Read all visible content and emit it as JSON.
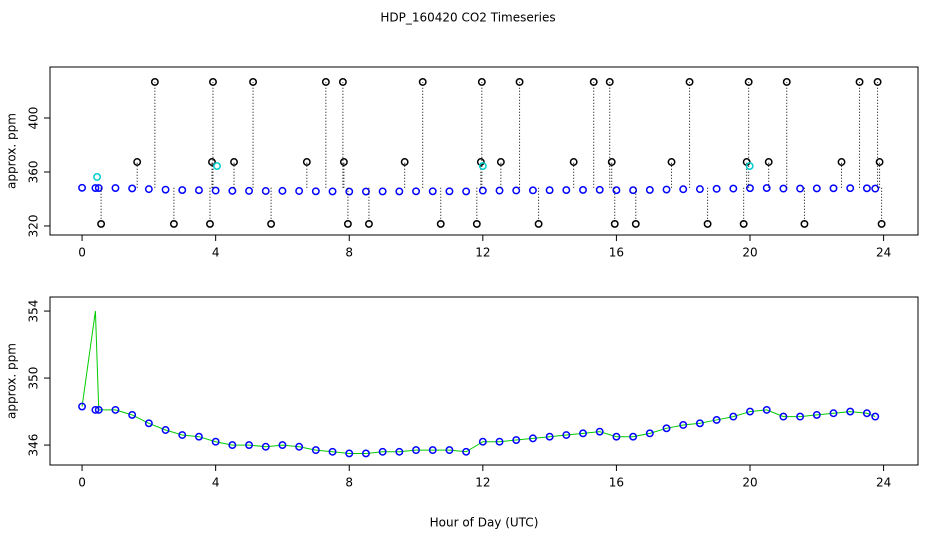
{
  "chart_data": [
    {
      "type": "scatter",
      "title": "HDP_160420  CO2 Timeseries",
      "ylabel": "approx. ppm",
      "xlim": [
        -0.96,
        25.03
      ],
      "xticks": [
        0,
        4,
        8,
        12,
        16,
        20,
        24
      ],
      "ylim": [
        313.3,
        437.8
      ],
      "yticks": [
        320,
        360,
        400
      ],
      "series": [
        {
          "color": "#0000ff",
          "style": "circle",
          "x": [
            0,
            0.4,
            0.5,
            1,
            1.5,
            2,
            2.5,
            3,
            3.5,
            4,
            4.5,
            5,
            5.5,
            6,
            6.5,
            7,
            7.5,
            8,
            8.5,
            9,
            9.5,
            10,
            10.5,
            11,
            11.5,
            12,
            12.5,
            13,
            13.5,
            14,
            14.5,
            15,
            15.5,
            16,
            16.5,
            17,
            17.5,
            18,
            18.5,
            19,
            19.5,
            20,
            20.5,
            21,
            21.5,
            22,
            22.5,
            23,
            23.5,
            23.75
          ],
          "values": [
            348.3,
            348.1,
            348.1,
            348.1,
            347.8,
            347.3,
            346.9,
            346.6,
            346.5,
            346.2,
            346.0,
            346.0,
            345.9,
            346.0,
            345.9,
            345.7,
            345.6,
            345.5,
            345.5,
            345.6,
            345.6,
            345.7,
            345.7,
            345.7,
            345.6,
            346.2,
            346.2,
            346.3,
            346.4,
            346.5,
            346.6,
            346.7,
            346.8,
            346.5,
            346.5,
            346.7,
            347.0,
            347.2,
            347.3,
            347.5,
            347.7,
            348.0,
            348.1,
            347.7,
            347.7,
            347.8,
            347.9,
            348.0,
            347.9,
            347.7
          ]
        },
        {
          "color": "#000000",
          "style": "drop",
          "x": [
            2.18,
            3.92,
            5.12,
            7.3,
            7.81,
            10.2,
            11.97,
            13.1,
            15.32,
            15.8,
            18.19,
            19.96,
            21.1,
            23.28,
            23.82,
            0.57,
            2.75,
            3.83,
            5.66,
            7.96,
            8.59,
            10.74,
            11.82,
            13.67,
            15.95,
            16.58,
            18.73,
            19.81,
            21.63,
            23.94,
            1.65,
            3.89,
            4.55,
            6.73,
            7.84,
            9.66,
            11.94,
            12.54,
            14.72,
            15.86,
            17.65,
            19.9,
            20.56,
            22.74,
            23.88
          ],
          "values": [
            426.7,
            426.7,
            426.7,
            426.7,
            426.7,
            426.7,
            426.7,
            426.7,
            426.7,
            426.7,
            426.7,
            426.7,
            426.7,
            426.7,
            426.7,
            321.5,
            321.5,
            321.5,
            321.5,
            321.5,
            321.5,
            321.5,
            321.5,
            321.5,
            321.5,
            321.5,
            321.5,
            321.5,
            321.5,
            321.5,
            367.4,
            367.4,
            367.4,
            367.4,
            367.4,
            367.4,
            367.4,
            367.4,
            367.4,
            367.4,
            367.4,
            367.4,
            367.4,
            367.4,
            367.4
          ]
        },
        {
          "color": "#00cccc",
          "style": "circle",
          "x": [
            0.45,
            4.04,
            12.0,
            19.99
          ],
          "values": [
            356.3,
            364.4,
            364.4,
            364.4
          ]
        }
      ]
    },
    {
      "type": "line",
      "ylabel": "approx. ppm",
      "xlabel": "Hour of Day (UTC)",
      "xlim": [
        -0.96,
        25.03
      ],
      "xticks": [
        0,
        4,
        8,
        12,
        16,
        20,
        24
      ],
      "ylim": [
        344.81,
        354.84
      ],
      "yticks": [
        346,
        350,
        354
      ],
      "x": [
        0,
        0.4,
        0.5,
        1,
        1.5,
        2,
        2.5,
        3,
        3.5,
        4,
        4.5,
        5,
        5.5,
        6,
        6.5,
        7,
        7.5,
        8,
        8.5,
        9,
        9.5,
        10,
        10.5,
        11,
        11.5,
        12,
        12.5,
        13,
        13.5,
        14,
        14.5,
        15,
        15.5,
        16,
        16.5,
        17,
        17.5,
        18,
        18.5,
        19,
        19.5,
        20,
        20.5,
        21,
        21.5,
        22,
        22.5,
        23,
        23.5,
        23.75
      ],
      "series": [
        {
          "color": "#00cc00",
          "style": "line",
          "values": [
            348.3,
            354.0,
            348.1,
            348.1,
            347.8,
            347.3,
            346.9,
            346.6,
            346.5,
            346.2,
            346.0,
            346.0,
            345.9,
            346.0,
            345.9,
            345.7,
            345.6,
            345.5,
            345.5,
            345.6,
            345.6,
            345.7,
            345.7,
            345.7,
            345.6,
            346.2,
            346.2,
            346.3,
            346.4,
            346.5,
            346.6,
            346.7,
            346.8,
            346.5,
            346.5,
            346.7,
            347.0,
            347.2,
            347.3,
            347.5,
            347.7,
            348.0,
            348.1,
            347.7,
            347.7,
            347.8,
            347.9,
            348.0,
            347.9,
            347.7
          ]
        },
        {
          "color": "#0000ff",
          "style": "circle",
          "values": [
            348.3,
            348.1,
            348.1,
            348.1,
            347.8,
            347.3,
            346.9,
            346.6,
            346.5,
            346.2,
            346.0,
            346.0,
            345.9,
            346.0,
            345.9,
            345.7,
            345.6,
            345.5,
            345.5,
            345.6,
            345.6,
            345.7,
            345.7,
            345.7,
            345.6,
            346.2,
            346.2,
            346.3,
            346.4,
            346.5,
            346.6,
            346.7,
            346.8,
            346.5,
            346.5,
            346.7,
            347.0,
            347.2,
            347.3,
            347.5,
            347.7,
            348.0,
            348.1,
            347.7,
            347.7,
            347.8,
            347.9,
            348.0,
            347.9,
            347.7
          ]
        }
      ]
    }
  ]
}
